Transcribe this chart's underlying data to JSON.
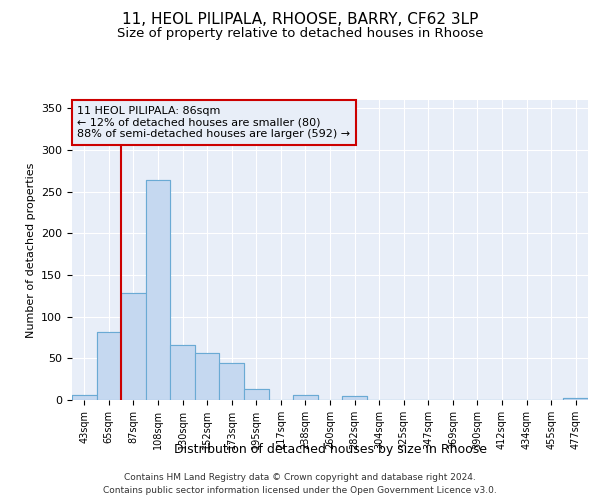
{
  "title_line1": "11, HEOL PILIPALA, RHOOSE, BARRY, CF62 3LP",
  "title_line2": "Size of property relative to detached houses in Rhoose",
  "xlabel": "Distribution of detached houses by size in Rhoose",
  "ylabel": "Number of detached properties",
  "footer_line1": "Contains HM Land Registry data © Crown copyright and database right 2024.",
  "footer_line2": "Contains public sector information licensed under the Open Government Licence v3.0.",
  "bin_labels": [
    "43sqm",
    "65sqm",
    "87sqm",
    "108sqm",
    "130sqm",
    "152sqm",
    "173sqm",
    "195sqm",
    "217sqm",
    "238sqm",
    "260sqm",
    "282sqm",
    "304sqm",
    "325sqm",
    "347sqm",
    "369sqm",
    "390sqm",
    "412sqm",
    "434sqm",
    "455sqm",
    "477sqm"
  ],
  "bar_values": [
    6,
    82,
    128,
    264,
    66,
    57,
    45,
    13,
    0,
    6,
    0,
    5,
    0,
    0,
    0,
    0,
    0,
    0,
    0,
    0,
    2
  ],
  "bar_color": "#c5d8f0",
  "bar_edgecolor": "#6aaad4",
  "property_line_value": 2,
  "property_line_color": "#cc0000",
  "annotation_line1": "11 HEOL PILIPALA: 86sqm",
  "annotation_line2": "← 12% of detached houses are smaller (80)",
  "annotation_line3": "88% of semi-detached houses are larger (592) →",
  "annotation_box_color": "#cc0000",
  "ylim": [
    0,
    360
  ],
  "yticks": [
    0,
    50,
    100,
    150,
    200,
    250,
    300,
    350
  ],
  "background_color": "#e8eef8",
  "plot_bg_color": "#e8eef8",
  "grid_color": "#ffffff",
  "title_fontsize": 11,
  "subtitle_fontsize": 9.5,
  "footer_fontsize": 6.5
}
